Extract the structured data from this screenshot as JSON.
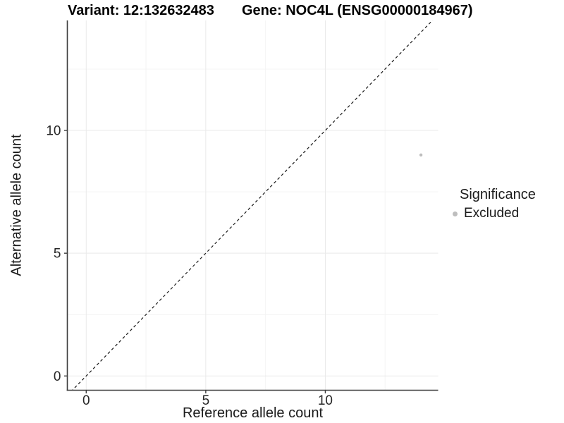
{
  "chart_data": {
    "type": "scatter",
    "titles": {
      "left": "Variant: 12:132632483",
      "right": "Gene: NOC4L (ENSG00000184967)"
    },
    "xlabel": "Reference allele count",
    "ylabel": "Alternative allele count",
    "x_ticks": [
      0,
      5,
      10
    ],
    "y_ticks": [
      0,
      5,
      10
    ],
    "x_minor": [
      2.5,
      7.5,
      12.5
    ],
    "y_minor": [
      2.5,
      7.5,
      12.5
    ],
    "xlim": [
      -0.79,
      14.72
    ],
    "ylim": [
      -0.58,
      14.48
    ],
    "grid": true,
    "reference_line": {
      "type": "identity",
      "slope": 1,
      "intercept": 0,
      "style": "dashed",
      "color": "#1a1a1a"
    },
    "series": [
      {
        "name": "Excluded",
        "color": "#bebebe",
        "points": [
          {
            "x": 14,
            "y": 9
          }
        ]
      }
    ],
    "legend": {
      "title": "Significance",
      "position": "right",
      "items": [
        {
          "label": "Excluded",
          "color": "#bebebe"
        }
      ]
    }
  },
  "colors": {
    "axis_line": "#3c3c3c",
    "tick_label": "#262626",
    "grid_major": "#e9e9e9",
    "grid_minor": "#f4f4f4",
    "background": "#ffffff"
  }
}
